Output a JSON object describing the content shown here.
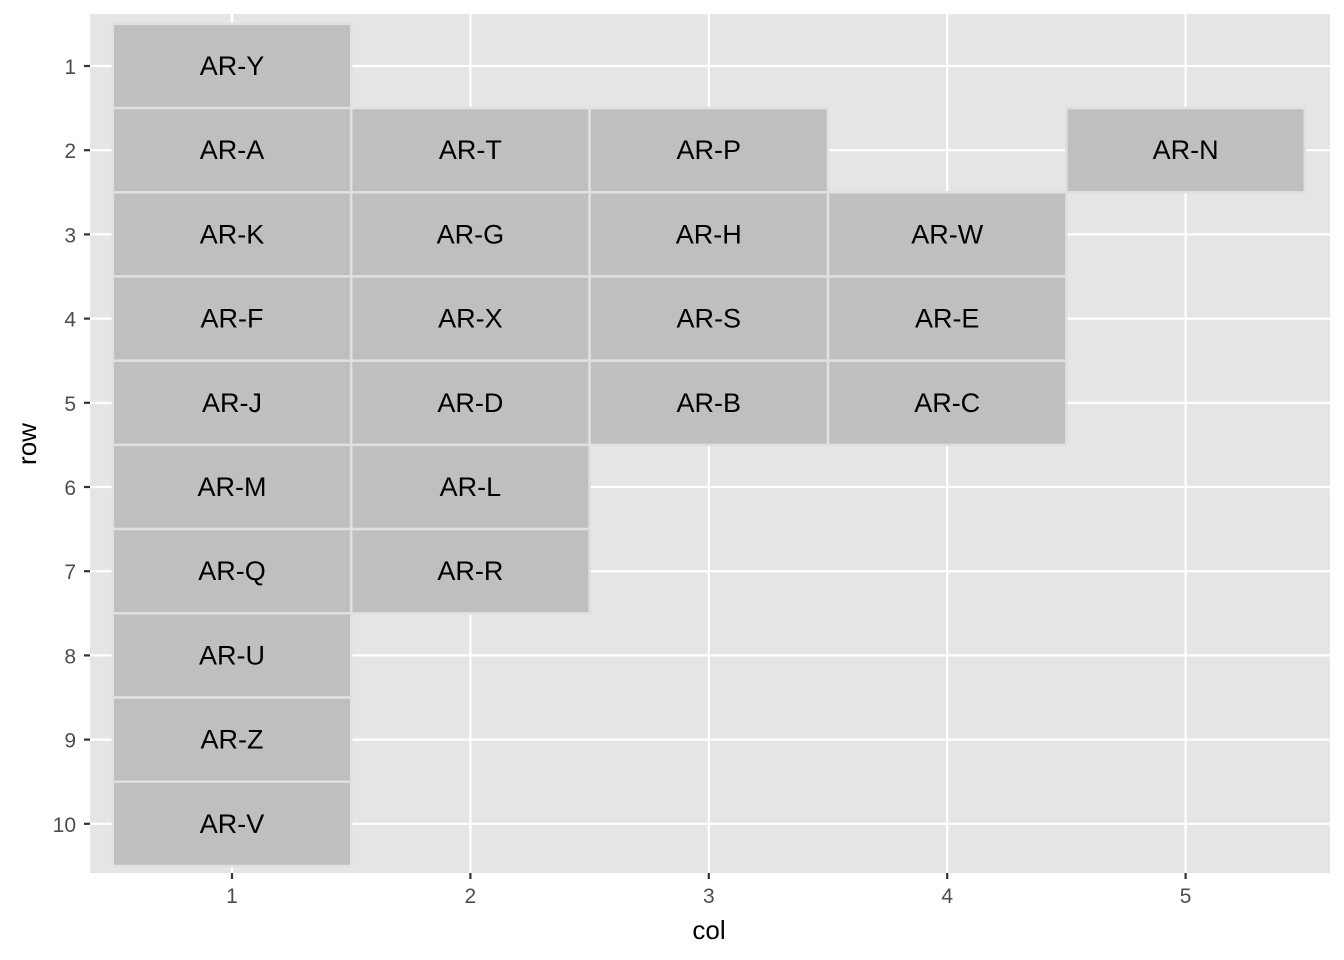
{
  "chart_data": {
    "type": "heatmap",
    "xlabel": "col",
    "ylabel": "row",
    "x_ticks": [
      "1",
      "2",
      "3",
      "4",
      "5"
    ],
    "y_ticks": [
      "1",
      "2",
      "3",
      "4",
      "5",
      "6",
      "7",
      "8",
      "9",
      "10"
    ],
    "xlim": [
      0.5,
      5.5
    ],
    "ylim": [
      10.5,
      0.5
    ],
    "y_reversed": true,
    "grid": true,
    "colors": {
      "panel": "#e5e5e5",
      "grid": "#ffffff",
      "tile_fill": "#bfbfbf",
      "tile_border": "#e0e0e0",
      "tick_text": "#4d4d4d",
      "axis_text": "#000000"
    },
    "tiles": [
      {
        "col": 1,
        "row": 1,
        "label": "AR-Y"
      },
      {
        "col": 1,
        "row": 2,
        "label": "AR-A"
      },
      {
        "col": 2,
        "row": 2,
        "label": "AR-T"
      },
      {
        "col": 3,
        "row": 2,
        "label": "AR-P"
      },
      {
        "col": 5,
        "row": 2,
        "label": "AR-N"
      },
      {
        "col": 1,
        "row": 3,
        "label": "AR-K"
      },
      {
        "col": 2,
        "row": 3,
        "label": "AR-G"
      },
      {
        "col": 3,
        "row": 3,
        "label": "AR-H"
      },
      {
        "col": 4,
        "row": 3,
        "label": "AR-W"
      },
      {
        "col": 1,
        "row": 4,
        "label": "AR-F"
      },
      {
        "col": 2,
        "row": 4,
        "label": "AR-X"
      },
      {
        "col": 3,
        "row": 4,
        "label": "AR-S"
      },
      {
        "col": 4,
        "row": 4,
        "label": "AR-E"
      },
      {
        "col": 1,
        "row": 5,
        "label": "AR-J"
      },
      {
        "col": 2,
        "row": 5,
        "label": "AR-D"
      },
      {
        "col": 3,
        "row": 5,
        "label": "AR-B"
      },
      {
        "col": 4,
        "row": 5,
        "label": "AR-C"
      },
      {
        "col": 1,
        "row": 6,
        "label": "AR-M"
      },
      {
        "col": 2,
        "row": 6,
        "label": "AR-L"
      },
      {
        "col": 1,
        "row": 7,
        "label": "AR-Q"
      },
      {
        "col": 2,
        "row": 7,
        "label": "AR-R"
      },
      {
        "col": 1,
        "row": 8,
        "label": "AR-U"
      },
      {
        "col": 1,
        "row": 9,
        "label": "AR-Z"
      },
      {
        "col": 1,
        "row": 10,
        "label": "AR-V"
      }
    ]
  }
}
